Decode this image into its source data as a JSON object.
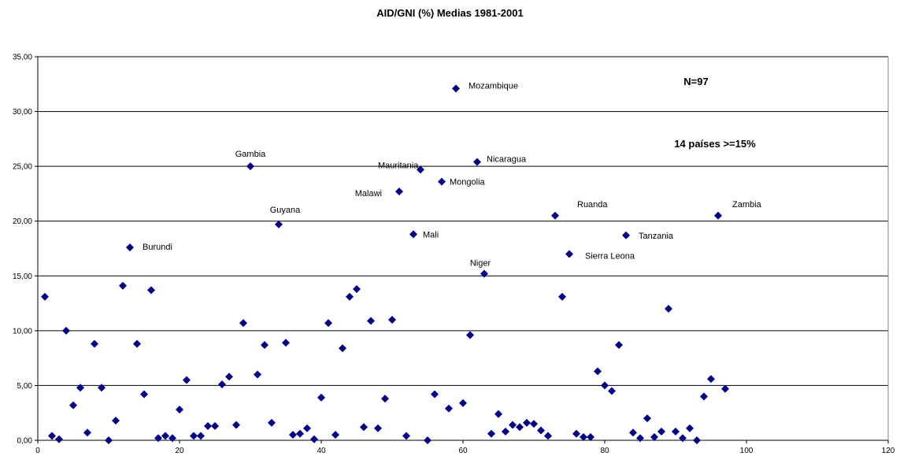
{
  "chart_data": {
    "type": "scatter",
    "title": "AID/GNI (%) Medias 1981-2001",
    "xlim": [
      0,
      120
    ],
    "ylim": [
      0,
      35
    ],
    "x_ticks": [
      "0",
      "20",
      "40",
      "60",
      "80",
      "100",
      "120"
    ],
    "y_ticks": [
      "0,00",
      "5,00",
      "10,00",
      "15,00",
      "20,00",
      "25,00",
      "30,00",
      "35,00"
    ],
    "grid": "horizontal",
    "marker_color": "#00008B",
    "annotations": [
      "N=97",
      "14 países >=15%"
    ],
    "series": [
      {
        "points": [
          [
            1,
            13.1
          ],
          [
            2,
            0.4
          ],
          [
            3,
            0.1
          ],
          [
            4,
            10.0
          ],
          [
            5,
            3.2
          ],
          [
            6,
            4.8
          ],
          [
            7,
            0.7
          ],
          [
            8,
            8.8
          ],
          [
            9,
            4.8
          ],
          [
            10,
            0.0
          ],
          [
            11,
            1.8
          ],
          [
            12,
            14.1
          ],
          [
            13,
            17.6
          ],
          [
            14,
            8.8
          ],
          [
            15,
            4.2
          ],
          [
            16,
            13.7
          ],
          [
            17,
            0.2
          ],
          [
            18,
            0.4
          ],
          [
            19,
            0.2
          ],
          [
            20,
            2.8
          ],
          [
            21,
            5.5
          ],
          [
            22,
            0.4
          ],
          [
            23,
            0.4
          ],
          [
            24,
            1.3
          ],
          [
            25,
            1.3
          ],
          [
            26,
            5.1
          ],
          [
            27,
            5.8
          ],
          [
            28,
            1.4
          ],
          [
            29,
            10.7
          ],
          [
            30,
            25.0
          ],
          [
            31,
            6.0
          ],
          [
            32,
            8.7
          ],
          [
            33,
            1.6
          ],
          [
            34,
            19.7
          ],
          [
            35,
            8.9
          ],
          [
            36,
            0.5
          ],
          [
            37,
            0.6
          ],
          [
            38,
            1.1
          ],
          [
            39,
            0.1
          ],
          [
            40,
            3.9
          ],
          [
            41,
            10.7
          ],
          [
            42,
            0.5
          ],
          [
            43,
            8.4
          ],
          [
            44,
            13.1
          ],
          [
            45,
            13.8
          ],
          [
            46,
            1.2
          ],
          [
            47,
            10.9
          ],
          [
            48,
            1.1
          ],
          [
            49,
            3.8
          ],
          [
            50,
            11.0
          ],
          [
            51,
            22.7
          ],
          [
            52,
            0.4
          ],
          [
            53,
            18.8
          ],
          [
            54,
            24.7
          ],
          [
            55,
            0.0
          ],
          [
            56,
            4.2
          ],
          [
            57,
            23.6
          ],
          [
            58,
            2.9
          ],
          [
            59,
            32.1
          ],
          [
            60,
            3.4
          ],
          [
            61,
            9.6
          ],
          [
            62,
            25.4
          ],
          [
            63,
            15.2
          ],
          [
            64,
            0.6
          ],
          [
            65,
            2.4
          ],
          [
            66,
            0.8
          ],
          [
            67,
            1.4
          ],
          [
            68,
            1.2
          ],
          [
            69,
            1.6
          ],
          [
            70,
            1.5
          ],
          [
            71,
            0.9
          ],
          [
            72,
            0.4
          ],
          [
            73,
            20.5
          ],
          [
            74,
            13.1
          ],
          [
            75,
            17.0
          ],
          [
            76,
            0.6
          ],
          [
            77,
            0.3
          ],
          [
            78,
            0.3
          ],
          [
            79,
            6.3
          ],
          [
            80,
            5.0
          ],
          [
            81,
            4.5
          ],
          [
            82,
            8.7
          ],
          [
            83,
            18.7
          ],
          [
            84,
            0.7
          ],
          [
            85,
            0.2
          ],
          [
            86,
            2.0
          ],
          [
            87,
            0.3
          ],
          [
            88,
            0.8
          ],
          [
            89,
            12.0
          ],
          [
            90,
            0.8
          ],
          [
            91,
            0.2
          ],
          [
            92,
            1.1
          ],
          [
            93,
            0.0
          ],
          [
            94,
            4.0
          ],
          [
            95,
            5.6
          ],
          [
            96,
            20.5
          ],
          [
            97,
            4.7
          ]
        ]
      }
    ],
    "point_labels": [
      {
        "x": 13,
        "y": 17.6,
        "text": "Burundi"
      },
      {
        "x": 30,
        "y": 25.0,
        "text": "Gambia"
      },
      {
        "x": 34,
        "y": 19.7,
        "text": "Guyana"
      },
      {
        "x": 51,
        "y": 22.7,
        "text": "Malawi"
      },
      {
        "x": 53,
        "y": 18.8,
        "text": "Mali"
      },
      {
        "x": 54,
        "y": 24.7,
        "text": "Mauritania"
      },
      {
        "x": 57,
        "y": 23.6,
        "text": "Mongolia"
      },
      {
        "x": 59,
        "y": 32.1,
        "text": "Mozambique"
      },
      {
        "x": 62,
        "y": 25.4,
        "text": "Nicaragua"
      },
      {
        "x": 63,
        "y": 15.2,
        "text": "Niger"
      },
      {
        "x": 73,
        "y": 20.5,
        "text": "Ruanda"
      },
      {
        "x": 75,
        "y": 17.0,
        "text": "Sierra Leona"
      },
      {
        "x": 83,
        "y": 18.7,
        "text": "Tanzania"
      },
      {
        "x": 96,
        "y": 20.5,
        "text": "Zambia"
      }
    ]
  }
}
